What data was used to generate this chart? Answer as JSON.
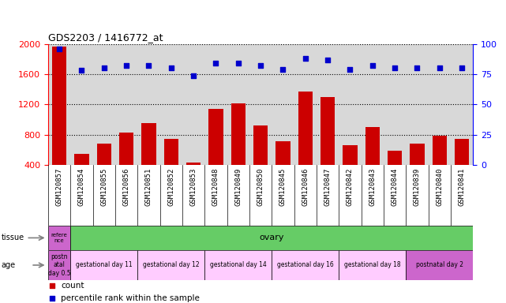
{
  "title": "GDS2203 / 1416772_at",
  "samples": [
    "GSM120857",
    "GSM120854",
    "GSM120855",
    "GSM120856",
    "GSM120851",
    "GSM120852",
    "GSM120853",
    "GSM120848",
    "GSM120849",
    "GSM120850",
    "GSM120845",
    "GSM120846",
    "GSM120847",
    "GSM120842",
    "GSM120843",
    "GSM120844",
    "GSM120839",
    "GSM120840",
    "GSM120841"
  ],
  "counts": [
    1970,
    545,
    680,
    830,
    960,
    750,
    430,
    1140,
    1220,
    920,
    720,
    1370,
    1300,
    660,
    900,
    590,
    680,
    790,
    750
  ],
  "percentiles": [
    96,
    78,
    80,
    82,
    82,
    80,
    74,
    84,
    84,
    82,
    79,
    88,
    87,
    79,
    82,
    80,
    80,
    80,
    80
  ],
  "ylim_left": [
    400,
    2000
  ],
  "ylim_right": [
    0,
    100
  ],
  "yticks_left": [
    400,
    800,
    1200,
    1600,
    2000
  ],
  "yticks_right": [
    0,
    25,
    50,
    75,
    100
  ],
  "bar_color": "#cc0000",
  "dot_color": "#0000cc",
  "bg_color": "#d8d8d8",
  "tissue_first_label": "refere\nnce",
  "tissue_first_color": "#cc66cc",
  "tissue_rest_label": "ovary",
  "tissue_rest_color": "#66cc66",
  "age_groups": [
    {
      "label": "postn\natal\nday 0.5",
      "color": "#cc66cc",
      "count": 1
    },
    {
      "label": "gestational day 11",
      "color": "#ffccff",
      "count": 3
    },
    {
      "label": "gestational day 12",
      "color": "#ffccff",
      "count": 3
    },
    {
      "label": "gestational day 14",
      "color": "#ffccff",
      "count": 3
    },
    {
      "label": "gestational day 16",
      "color": "#ffccff",
      "count": 3
    },
    {
      "label": "gestational day 18",
      "color": "#ffccff",
      "count": 3
    },
    {
      "label": "postnatal day 2",
      "color": "#cc66cc",
      "count": 3
    }
  ],
  "legend_count_label": "count",
  "legend_pct_label": "percentile rank within the sample"
}
